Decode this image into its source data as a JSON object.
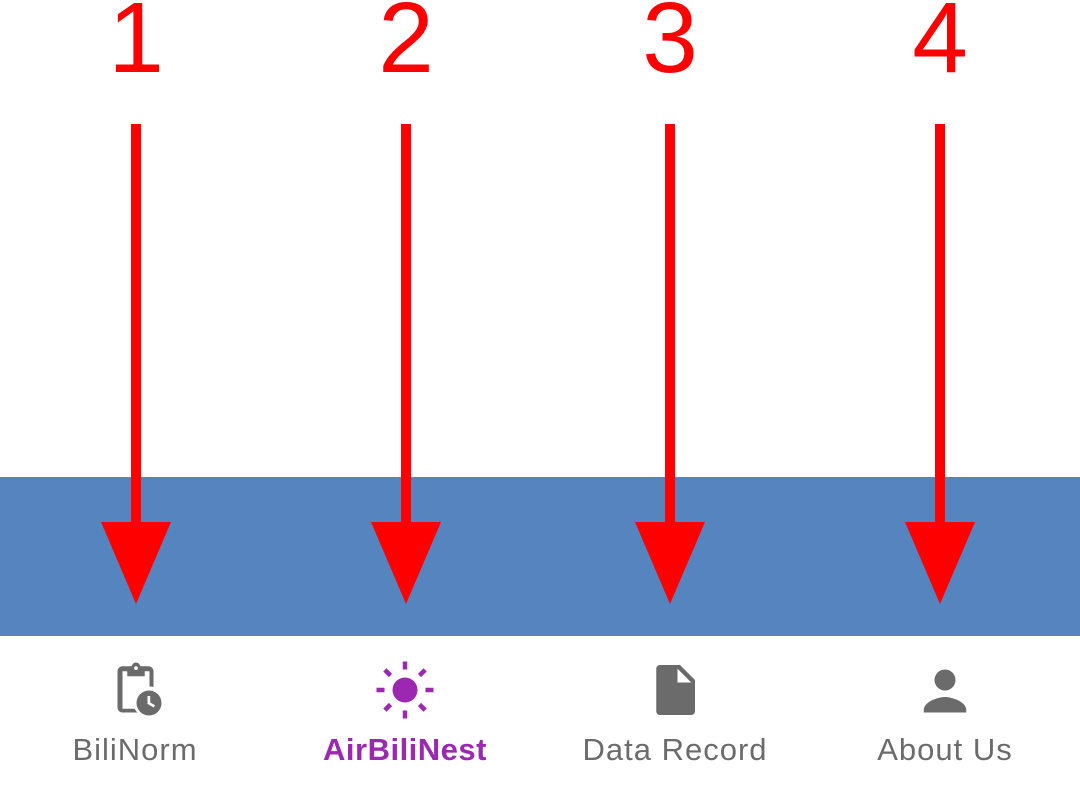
{
  "annotations": {
    "numbers": [
      "1",
      "2",
      "3",
      "4"
    ],
    "arrow_color": "#ff0000"
  },
  "band_color": "#5684bf",
  "bottom_nav": {
    "active_color": "#9c27b0",
    "inactive_color": "#6b6b6b",
    "items": [
      {
        "label": "BiliNorm",
        "icon": "clipboard-clock-icon",
        "active": false
      },
      {
        "label": "AirBiliNest",
        "icon": "sun-icon",
        "active": true
      },
      {
        "label": "Data Record",
        "icon": "document-icon",
        "active": false
      },
      {
        "label": "About Us",
        "icon": "person-icon",
        "active": false
      }
    ]
  }
}
